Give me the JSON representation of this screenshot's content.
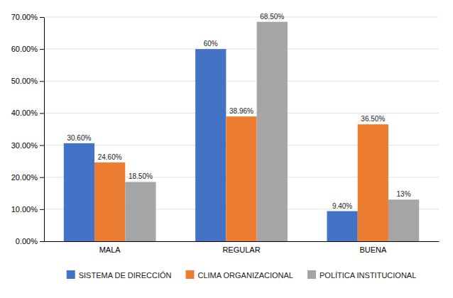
{
  "chart_data": {
    "type": "bar",
    "categories": [
      "MALA",
      "REGULAR",
      "BUENA"
    ],
    "series": [
      {
        "name": "SISTEMA DE DIRECCIÓN",
        "color": "#4472C4",
        "values": [
          30.6,
          60.0,
          9.4
        ],
        "value_labels": [
          "30.60%",
          "60%",
          "9.40%"
        ]
      },
      {
        "name": "CLIMA ORGANIZACIONAL",
        "color": "#ED7D31",
        "values": [
          24.6,
          38.96,
          36.5
        ],
        "value_labels": [
          "24.60%",
          "38.96%",
          "36.50%"
        ]
      },
      {
        "name": "POLÍTICA INSTITUCIONAL",
        "color": "#A5A5A5",
        "values": [
          18.5,
          68.5,
          13.0
        ],
        "value_labels": [
          "18.50%",
          "68.50%",
          "13%"
        ]
      }
    ],
    "ylim": [
      0,
      70
    ],
    "yticks": [
      {
        "value": 0,
        "label": "0.00%"
      },
      {
        "value": 10,
        "label": "10.00%"
      },
      {
        "value": 20,
        "label": "20.00%"
      },
      {
        "value": 30,
        "label": "30.00%"
      },
      {
        "value": 40,
        "label": "40.00%"
      },
      {
        "value": 50,
        "label": "50.00%"
      },
      {
        "value": 60,
        "label": "60.00%"
      },
      {
        "value": 70,
        "label": "70.00%"
      }
    ],
    "grid": true,
    "data_labels": true,
    "legend": "bottom"
  }
}
